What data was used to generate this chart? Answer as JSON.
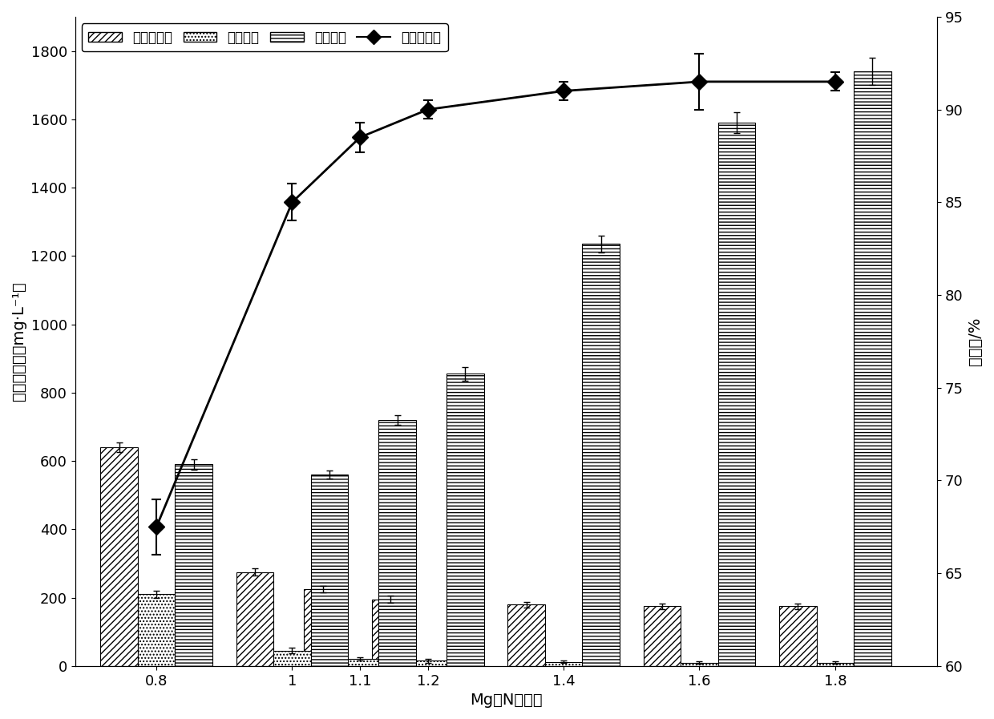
{
  "x_labels": [
    "0.8",
    "1",
    "1.1",
    "1.2",
    "1.4",
    "1.6",
    "1.8"
  ],
  "x_positions": [
    0.8,
    1.0,
    1.1,
    1.2,
    1.4,
    1.6,
    1.8
  ],
  "ammonium_residual": [
    640,
    275,
    225,
    195,
    180,
    175,
    175
  ],
  "ammonium_residual_err": [
    15,
    10,
    10,
    10,
    8,
    8,
    8
  ],
  "phosphorus_residual": [
    210,
    45,
    20,
    15,
    12,
    10,
    10
  ],
  "phosphorus_residual_err": [
    10,
    8,
    5,
    5,
    3,
    3,
    3
  ],
  "magnesium_residual": [
    590,
    560,
    720,
    855,
    1235,
    1590,
    1740
  ],
  "magnesium_residual_err": [
    15,
    12,
    15,
    20,
    25,
    30,
    40
  ],
  "removal_rate": [
    67.5,
    85.0,
    88.5,
    90.0,
    91.0,
    91.5,
    91.5
  ],
  "removal_rate_err": [
    1.5,
    1.0,
    0.8,
    0.5,
    0.5,
    1.5,
    0.5
  ],
  "bar_width": 0.055,
  "ylim_left": [
    0,
    1900
  ],
  "ylim_right": [
    60,
    95
  ],
  "yticks_left": [
    0,
    200,
    400,
    600,
    800,
    1000,
    1200,
    1400,
    1600,
    1800
  ],
  "yticks_right": [
    60,
    65,
    70,
    75,
    80,
    85,
    90,
    95
  ],
  "xlabel": "Mg、N摩尔比",
  "ylabel_left": "剩余浓度／（mg·L⁻¹）",
  "ylabel_right": "去除率/%",
  "legend_labels": [
    "氨氮残留量",
    "磷残留量",
    "镁残留量",
    "氨氮去除率"
  ],
  "hatch_ammonium": "////",
  "hatch_phosphorus": "....",
  "hatch_magnesium": "----",
  "bar_color": "white",
  "bar_edgecolor": "black",
  "line_color": "black",
  "marker": "D",
  "figure_facecolor": "white",
  "label_fontsize": 14,
  "tick_fontsize": 13,
  "legend_fontsize": 12
}
